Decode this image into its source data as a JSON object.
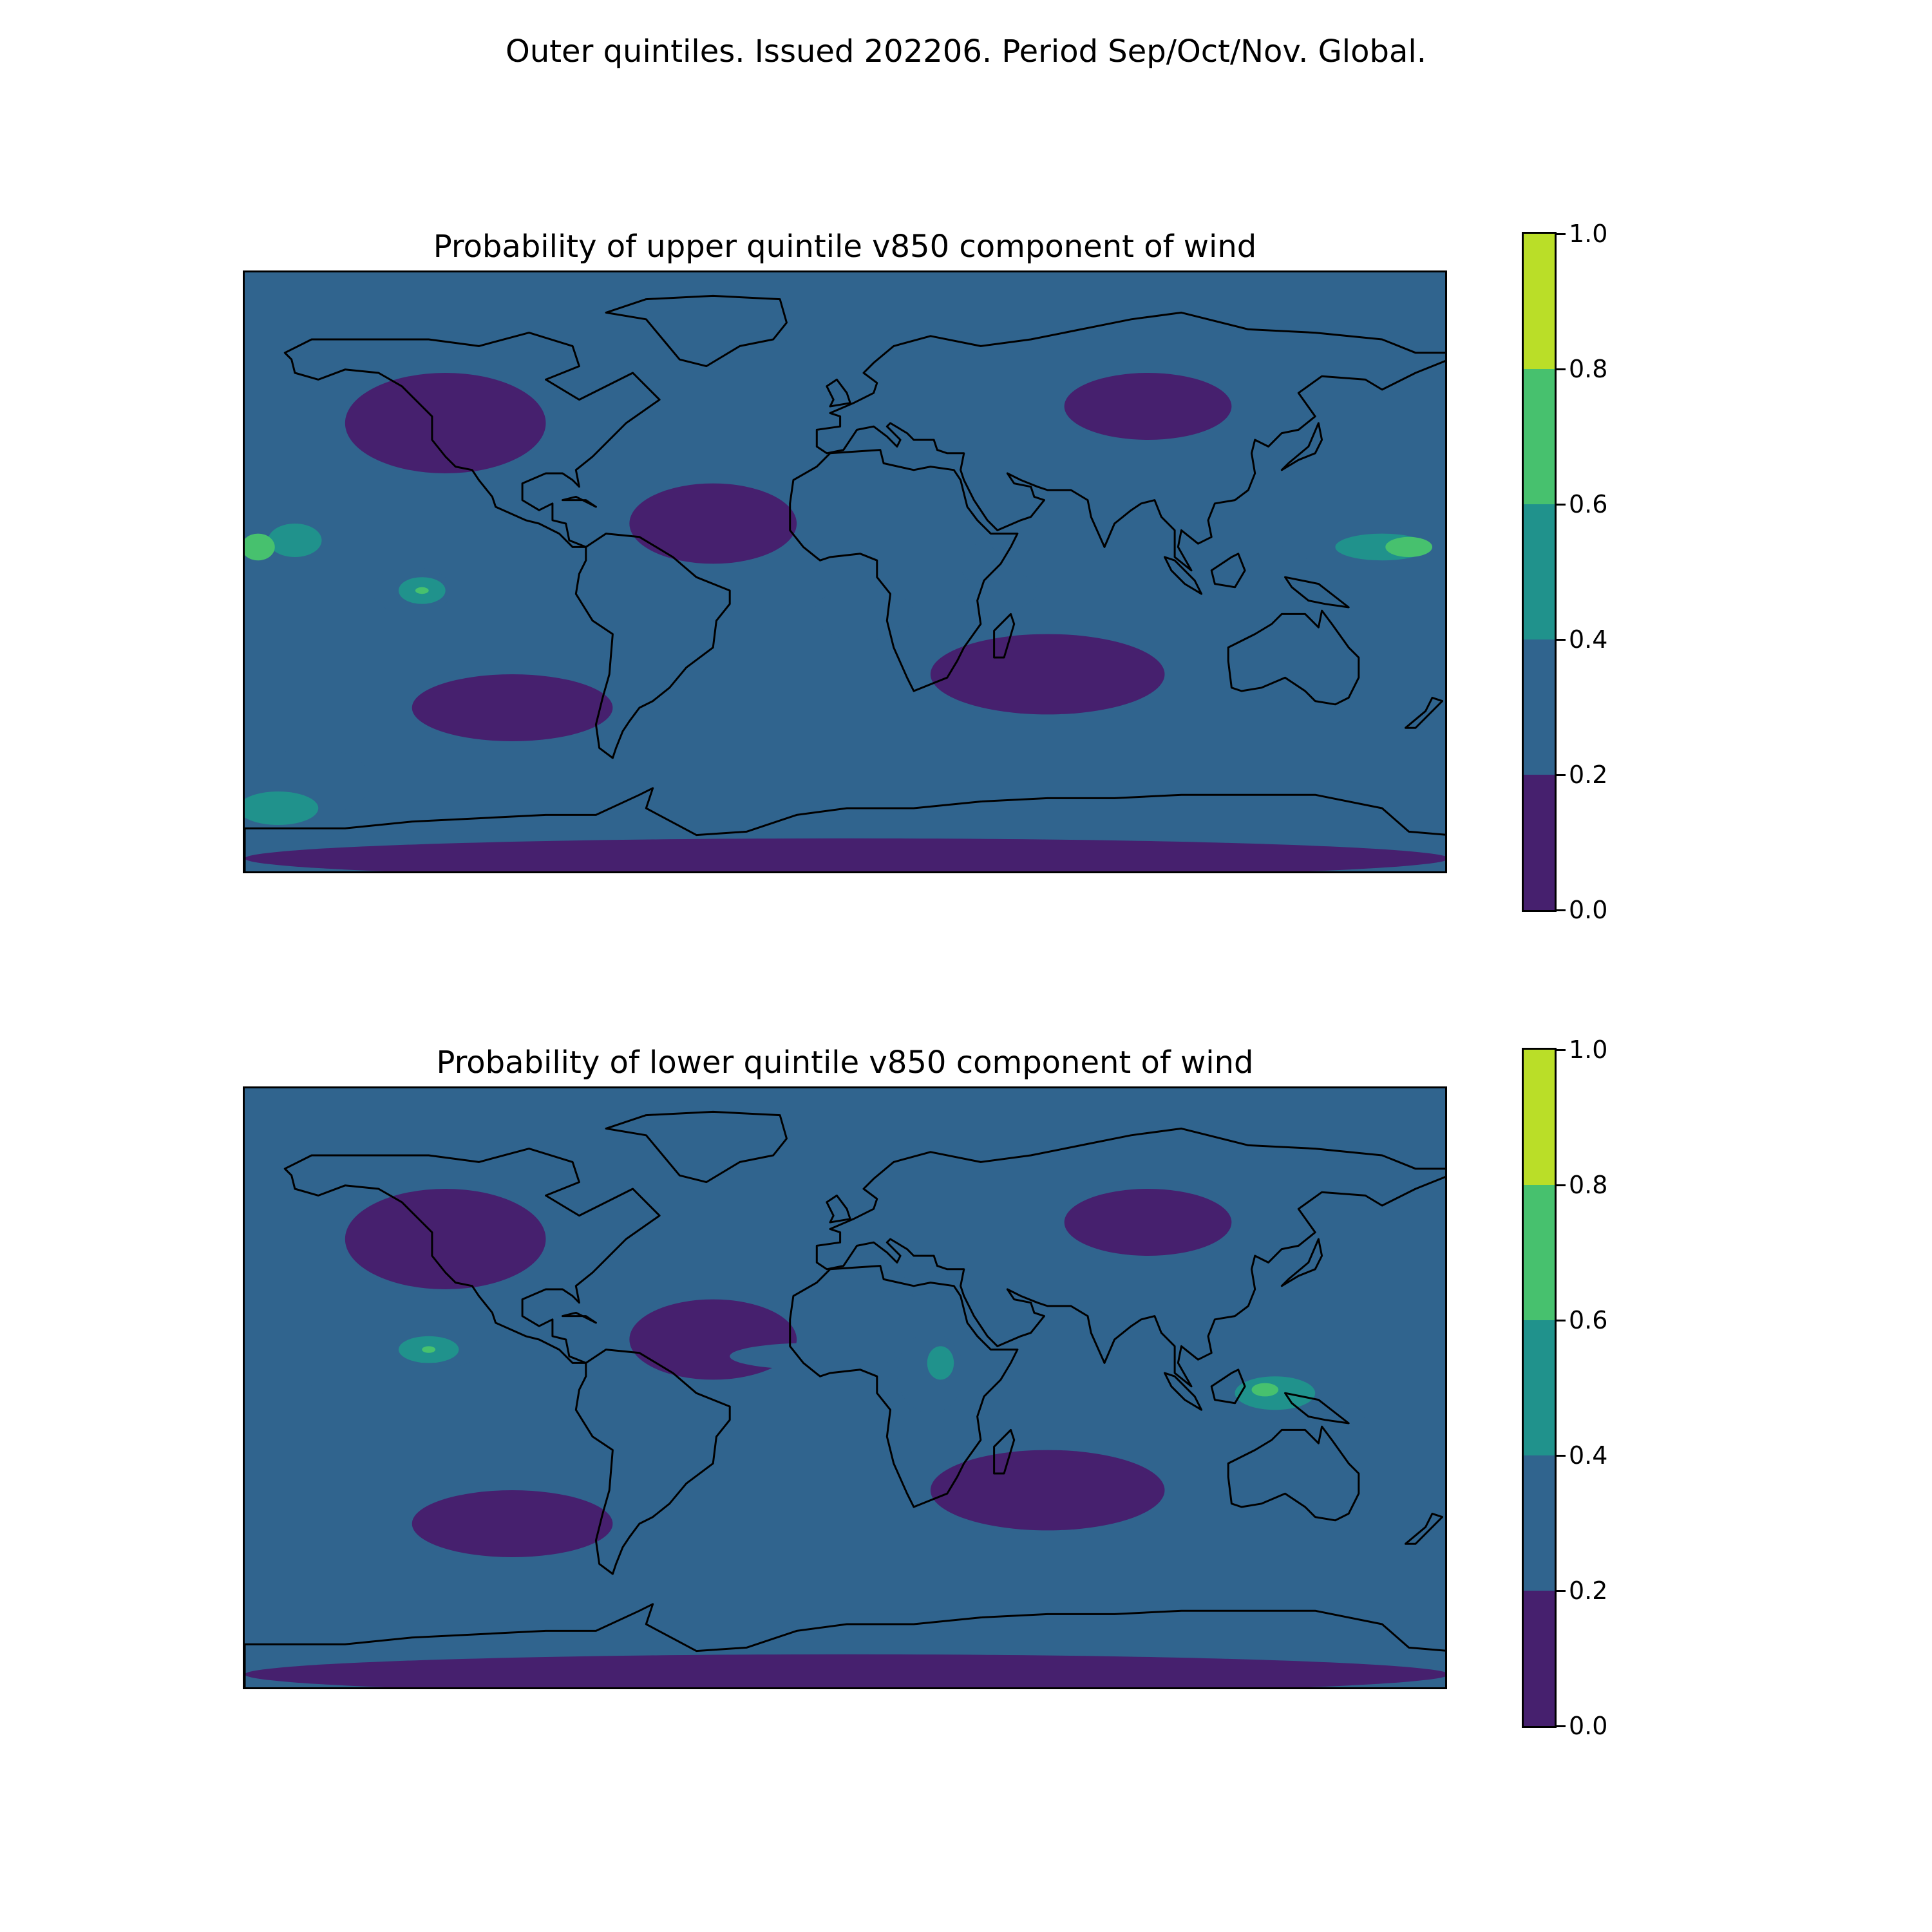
{
  "figure": {
    "suptitle": "Outer quintiles. Issued 202206. Period Sep/Oct/Nov. Global."
  },
  "colormap": {
    "levels": [
      "0.0",
      "0.2",
      "0.4",
      "0.6",
      "0.8",
      "1.0"
    ],
    "colors": [
      "#46206e",
      "#30648e",
      "#20928c",
      "#47c16e",
      "#bade28"
    ]
  },
  "panels": [
    {
      "id": "upper",
      "title": "Probability of upper quintile v850 component of wind",
      "blobs": [
        {
          "lon": -175,
          "lat": 10,
          "rx": 10,
          "ry": 8,
          "level": 1
        },
        {
          "lon": -165,
          "lat": 10,
          "rx": 8,
          "ry": 5,
          "level": 2
        },
        {
          "lon": -176,
          "lat": 8,
          "rx": 5,
          "ry": 4,
          "level": 3
        },
        {
          "lon": -130,
          "lat": -5,
          "rx": 12,
          "ry": 7,
          "level": 1
        },
        {
          "lon": -127,
          "lat": -5,
          "rx": 7,
          "ry": 4,
          "level": 2
        },
        {
          "lon": -127,
          "lat": -5,
          "rx": 2,
          "ry": 1,
          "level": 3
        },
        {
          "lon": 152,
          "lat": 9,
          "rx": 22,
          "ry": 6,
          "level": 1
        },
        {
          "lon": 160,
          "lat": 8,
          "rx": 14,
          "ry": 4,
          "level": 2
        },
        {
          "lon": 168,
          "lat": 8,
          "rx": 7,
          "ry": 3,
          "level": 3
        },
        {
          "lon": 5,
          "lat": -12,
          "rx": 15,
          "ry": 8,
          "level": 1
        },
        {
          "lon": 45,
          "lat": -5,
          "rx": 12,
          "ry": 6,
          "level": 1
        },
        {
          "lon": 40,
          "lat": 3,
          "rx": 6,
          "ry": 6,
          "level": 1
        },
        {
          "lon": -160,
          "lat": -62,
          "rx": 18,
          "ry": 10,
          "level": 1
        },
        {
          "lon": -170,
          "lat": -70,
          "rx": 12,
          "ry": 5,
          "level": 2
        }
      ]
    },
    {
      "id": "lower",
      "title": "Probability of lower quintile v850 component of wind",
      "blobs": [
        {
          "lon": -125,
          "lat": 12,
          "rx": 16,
          "ry": 6,
          "level": 1
        },
        {
          "lon": -125,
          "lat": 12,
          "rx": 9,
          "ry": 4,
          "level": 2
        },
        {
          "lon": -125,
          "lat": 12,
          "rx": 2,
          "ry": 1,
          "level": 3
        },
        {
          "lon": -170,
          "lat": -3,
          "rx": 14,
          "ry": 6,
          "level": 1
        },
        {
          "lon": 130,
          "lat": 0,
          "rx": 24,
          "ry": 8,
          "level": 1
        },
        {
          "lon": 128,
          "lat": -1,
          "rx": 12,
          "ry": 5,
          "level": 2
        },
        {
          "lon": 125,
          "lat": 0,
          "rx": 4,
          "ry": 2,
          "level": 3
        },
        {
          "lon": 165,
          "lat": -5,
          "rx": 14,
          "ry": 5,
          "level": 1
        },
        {
          "lon": 25,
          "lat": 5,
          "rx": 10,
          "ry": 12,
          "level": 1
        },
        {
          "lon": 28,
          "lat": 8,
          "rx": 4,
          "ry": 5,
          "level": 2
        },
        {
          "lon": -10,
          "lat": 10,
          "rx": 25,
          "ry": 4,
          "level": 1
        },
        {
          "lon": 15,
          "lat": 30,
          "rx": 5,
          "ry": 4,
          "level": 1
        },
        {
          "lon": 105,
          "lat": 10,
          "rx": 8,
          "ry": 4,
          "level": 1
        }
      ]
    }
  ]
}
